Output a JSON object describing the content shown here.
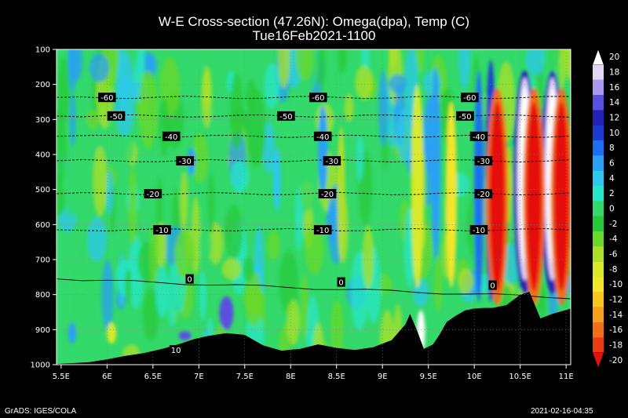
{
  "chart_data": {
    "type": "heatmap",
    "title": "W-E Cross-section (47.26N): Omega(dpa), Temp (C)",
    "subtitle": "Tue16Feb2021-1100",
    "x_ticks": [
      "5.5E",
      "6E",
      "6.5E",
      "7E",
      "7.5E",
      "8E",
      "8.5E",
      "9E",
      "9.5E",
      "10E",
      "10.5E",
      "11E"
    ],
    "x_tick_values": [
      5.5,
      6,
      6.5,
      7,
      7.5,
      8,
      8.5,
      9,
      9.5,
      10,
      10.5,
      11
    ],
    "xlim": [
      5.45,
      11.05
    ],
    "y_ticks": [
      "100",
      "200",
      "300",
      "400",
      "500",
      "600",
      "700",
      "800",
      "900",
      "1000"
    ],
    "y_tick_values": [
      100,
      200,
      300,
      400,
      500,
      600,
      700,
      800,
      900,
      1000
    ],
    "ylim": [
      100,
      1000
    ],
    "colorbar": {
      "labels": [
        "20",
        "18",
        "16",
        "14",
        "12",
        "10",
        "8",
        "6",
        "4",
        "2",
        "0",
        "-2",
        "-4",
        "-6",
        "-8",
        "-10",
        "-12",
        "-14",
        "-16",
        "-18",
        "-20"
      ],
      "colors": [
        "#ffffff",
        "#e1d6f5",
        "#a89bef",
        "#5b4fe0",
        "#2222b8",
        "#1a3ccf",
        "#1e6ef0",
        "#2aa0f5",
        "#2ec8ef",
        "#27e5c9",
        "#33d96a",
        "#27c93a",
        "#6ad82a",
        "#aee02a",
        "#d8ea2a",
        "#f3e62a",
        "#f6c71f",
        "#f4a020",
        "#f07018",
        "#ec3a14",
        "#e61010"
      ]
    },
    "temperature_contours": [
      {
        "label": "-60",
        "pressure": 237
      },
      {
        "label": "-50",
        "pressure": 290
      },
      {
        "label": "-40",
        "pressure": 348
      },
      {
        "label": "-30",
        "pressure": 418
      },
      {
        "label": "-20",
        "pressure": 512
      },
      {
        "label": "-10",
        "pressure": 615
      },
      {
        "label": "0",
        "pressure": 755
      },
      {
        "label": "10",
        "pressure": 958
      }
    ],
    "contour_label_positions": [
      {
        "label": "-60",
        "x": [
          6.0,
          8.3,
          9.95
        ]
      },
      {
        "label": "-50",
        "x": [
          6.1,
          7.95,
          9.9
        ]
      },
      {
        "label": "-40",
        "x": [
          6.7,
          8.35,
          10.05
        ]
      },
      {
        "label": "-30",
        "x": [
          6.85,
          8.45,
          10.1
        ]
      },
      {
        "label": "-20",
        "x": [
          6.5,
          8.4,
          10.1
        ]
      },
      {
        "label": "-10",
        "x": [
          6.6,
          8.35,
          10.05
        ]
      },
      {
        "label": "0",
        "x": [
          6.9,
          8.55,
          10.2
        ]
      },
      {
        "label": "10",
        "x": [
          6.75
        ]
      }
    ],
    "terrain": [
      [
        5.45,
        998
      ],
      [
        5.8,
        993
      ],
      [
        6.0,
        985
      ],
      [
        6.2,
        975
      ],
      [
        6.4,
        967
      ],
      [
        6.6,
        955
      ],
      [
        6.8,
        940
      ],
      [
        6.95,
        927
      ],
      [
        7.1,
        918
      ],
      [
        7.3,
        910
      ],
      [
        7.5,
        915
      ],
      [
        7.7,
        945
      ],
      [
        7.9,
        960
      ],
      [
        8.1,
        955
      ],
      [
        8.3,
        942
      ],
      [
        8.5,
        952
      ],
      [
        8.7,
        958
      ],
      [
        8.9,
        950
      ],
      [
        9.1,
        930
      ],
      [
        9.25,
        885
      ],
      [
        9.3,
        855
      ],
      [
        9.38,
        905
      ],
      [
        9.45,
        955
      ],
      [
        9.55,
        942
      ],
      [
        9.62,
        915
      ],
      [
        9.7,
        878
      ],
      [
        9.8,
        860
      ],
      [
        9.9,
        845
      ],
      [
        10.0,
        840
      ],
      [
        10.1,
        838
      ],
      [
        10.2,
        838
      ],
      [
        10.35,
        830
      ],
      [
        10.5,
        800
      ],
      [
        10.6,
        792
      ],
      [
        10.72,
        868
      ],
      [
        10.85,
        855
      ],
      [
        11.05,
        840
      ]
    ],
    "features": {
      "positive_max_core": [
        10.55,
        10.85
      ],
      "negative_max_core": [
        10.25,
        10.65,
        10.95
      ]
    }
  },
  "footer": {
    "left": "GrADS: IGES/COLA",
    "right": "2021-02-16-04:35"
  }
}
